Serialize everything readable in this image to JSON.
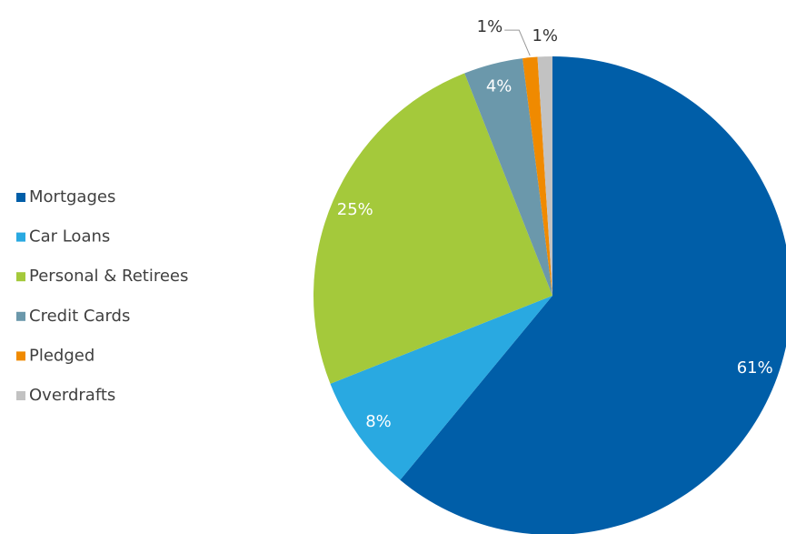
{
  "chart_data": {
    "type": "pie",
    "categories": [
      "Mortgages",
      "Car Loans",
      "Personal & Retirees",
      "Credit Cards",
      "Pledged",
      "Overdrafts"
    ],
    "values": [
      61,
      8,
      25,
      4,
      1,
      1
    ],
    "value_labels": [
      "61%",
      "8%",
      "25%",
      "4%",
      "1%",
      "1%"
    ],
    "colors": [
      "#005ea8",
      "#29a9e1",
      "#a4c93b",
      "#6b98ab",
      "#f08a00",
      "#c2c2c2"
    ],
    "legend": "left"
  }
}
